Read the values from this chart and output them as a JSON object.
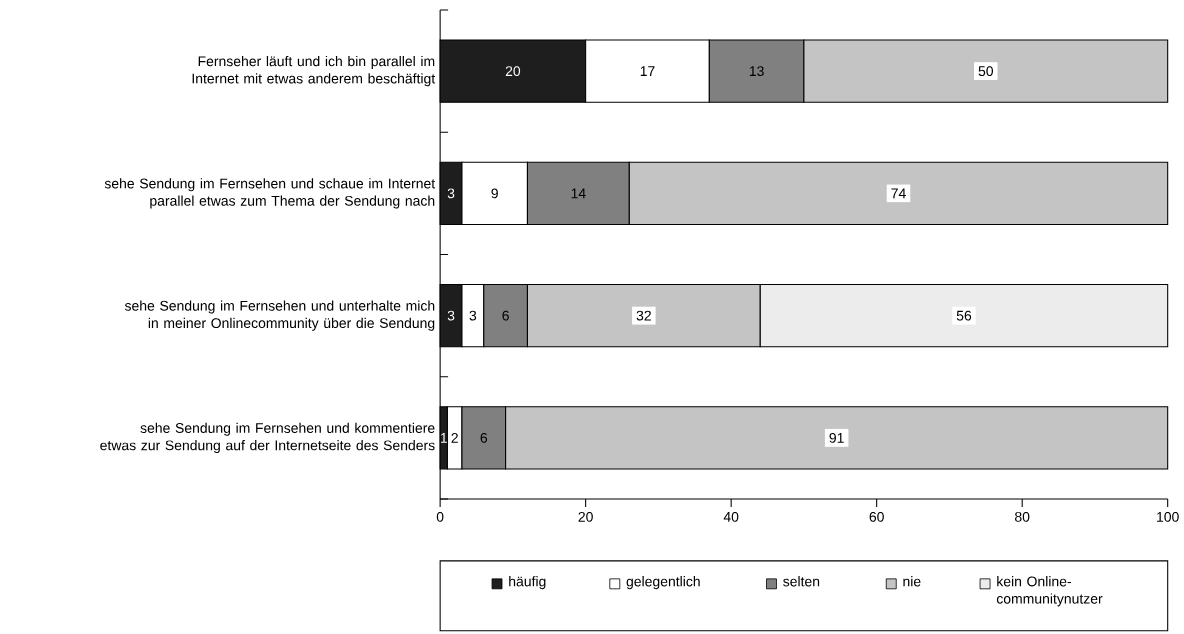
{
  "chart_data": {
    "type": "bar",
    "orientation": "horizontal",
    "stacked": true,
    "categories": [
      "Fernseher läuft und ich bin parallel im Internet mit etwas anderem beschäftigt",
      "sehe Sendung im Fernsehen und schaue im Internet parallel etwas zum Thema der Sendung nach",
      "sehe Sendung im Fernsehen und unterhalte mich in meiner Onlinecommunity über die Sendung",
      "sehe Sendung im Fernsehen und kommentiere etwas zur Sendung auf der Internetseite des Senders"
    ],
    "series": [
      {
        "name": "häufig",
        "color": "#1e1e1e",
        "values": [
          20,
          3,
          3,
          1
        ]
      },
      {
        "name": "gelegentlich",
        "color": "#ffffff",
        "values": [
          17,
          9,
          3,
          2
        ]
      },
      {
        "name": "selten",
        "color": "#808080",
        "values": [
          13,
          14,
          6,
          6
        ]
      },
      {
        "name": "nie",
        "color": "#c4c4c4",
        "values": [
          50,
          74,
          32,
          91
        ]
      },
      {
        "name": "kein Online-communitynutzer",
        "color": "#ececec",
        "values": [
          null,
          null,
          56,
          null
        ]
      }
    ],
    "xlim": [
      0,
      100
    ],
    "xticks": [
      0,
      20,
      40,
      60,
      80,
      100
    ],
    "data_labels": true,
    "legend": "bottom"
  }
}
